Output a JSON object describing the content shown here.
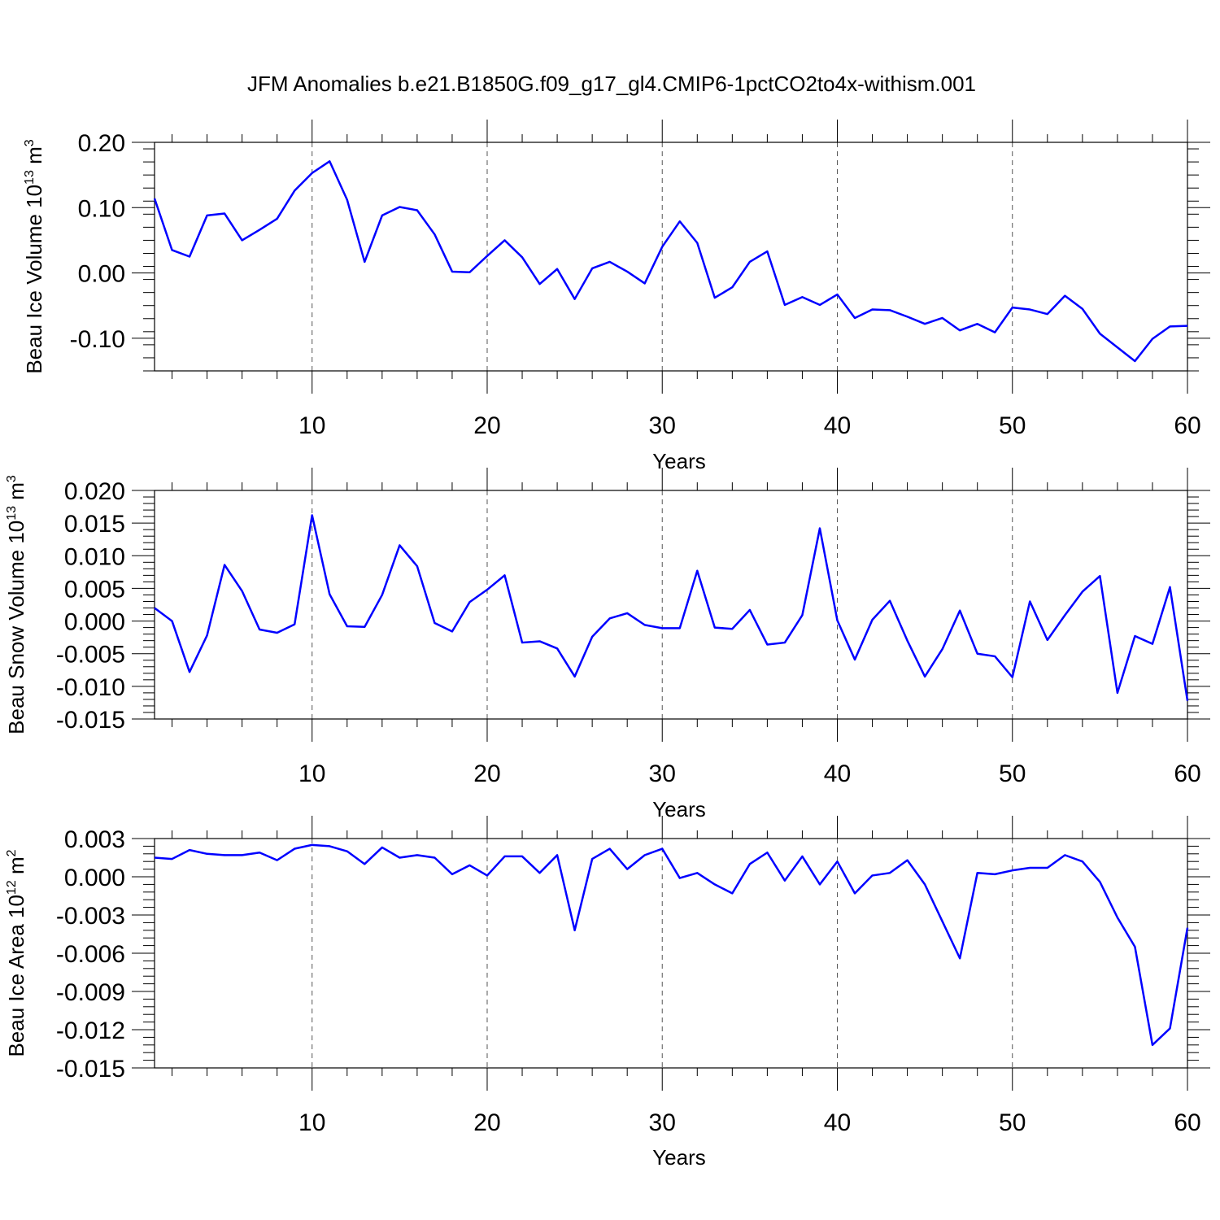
{
  "title": "JFM Anomalies b.e21.B1850G.f09_g17_gl4.CMIP6-1pctCO2to4x-withism.001",
  "line_color": "#0000ff",
  "chart_data": [
    {
      "type": "line",
      "title": "JFM Anomalies b.e21.B1850G.f09_g17_gl4.CMIP6-1pctCO2to4x-withism.001",
      "xlabel": "Years",
      "ylabel": "Beau Ice Volume 10",
      "ylabel_exp": "13",
      "ylabel_unit": " m",
      "ylabel_unit_exp": "3",
      "xlim": [
        1,
        60
      ],
      "ylim": [
        -0.15,
        0.2
      ],
      "xticks": [
        10,
        20,
        30,
        40,
        50,
        60
      ],
      "yticks": [
        -0.1,
        0.0,
        0.1,
        0.2
      ],
      "ytick_labels": [
        "-0.10",
        "0.00",
        "0.10",
        "0.20"
      ],
      "grid": "x-major-dashed",
      "x": [
        1,
        2,
        3,
        4,
        5,
        6,
        7,
        8,
        9,
        10,
        11,
        12,
        13,
        14,
        15,
        16,
        17,
        18,
        19,
        20,
        21,
        22,
        23,
        24,
        25,
        26,
        27,
        28,
        29,
        30,
        31,
        32,
        33,
        34,
        35,
        36,
        37,
        38,
        39,
        40,
        41,
        42,
        43,
        44,
        45,
        46,
        47,
        48,
        49,
        50,
        51,
        52,
        53,
        54,
        55,
        56,
        57,
        58,
        59,
        60
      ],
      "series": [
        {
          "values": [
            0.114,
            0.035,
            0.025,
            0.088,
            0.091,
            0.05,
            0.066,
            0.083,
            0.126,
            0.153,
            0.171,
            0.112,
            0.017,
            0.088,
            0.101,
            0.096,
            0.059,
            0.002,
            0.001,
            0.026,
            0.05,
            0.024,
            -0.017,
            0.006,
            -0.04,
            0.007,
            0.017,
            0.002,
            -0.016,
            0.04,
            0.079,
            0.046,
            -0.038,
            -0.022,
            0.017,
            0.033,
            -0.049,
            -0.037,
            -0.049,
            -0.033,
            -0.069,
            -0.056,
            -0.057,
            -0.067,
            -0.078,
            -0.069,
            -0.088,
            -0.078,
            -0.091,
            -0.053,
            -0.056,
            -0.063,
            -0.035,
            -0.055,
            -0.093,
            -0.114,
            -0.135,
            -0.101,
            -0.082,
            -0.081
          ]
        }
      ]
    },
    {
      "type": "line",
      "xlabel": "Years",
      "ylabel": "Beau Snow Volume 10",
      "ylabel_exp": "13",
      "ylabel_unit": " m",
      "ylabel_unit_exp": "3",
      "xlim": [
        1,
        60
      ],
      "ylim": [
        -0.015,
        0.02
      ],
      "xticks": [
        10,
        20,
        30,
        40,
        50,
        60
      ],
      "yticks": [
        -0.015,
        -0.01,
        -0.005,
        0.0,
        0.005,
        0.01,
        0.015,
        0.02
      ],
      "ytick_labels": [
        "-0.015",
        "-0.010",
        "-0.005",
        "0.000",
        "0.005",
        "0.010",
        "0.015",
        "0.020"
      ],
      "grid": "x-major-dashed",
      "x": [
        1,
        2,
        3,
        4,
        5,
        6,
        7,
        8,
        9,
        10,
        11,
        12,
        13,
        14,
        15,
        16,
        17,
        18,
        19,
        20,
        21,
        22,
        23,
        24,
        25,
        26,
        27,
        28,
        29,
        30,
        31,
        32,
        33,
        34,
        35,
        36,
        37,
        38,
        39,
        40,
        41,
        42,
        43,
        44,
        45,
        46,
        47,
        48,
        49,
        50,
        51,
        52,
        53,
        54,
        55,
        56,
        57,
        58,
        59,
        60
      ],
      "series": [
        {
          "values": [
            0.002,
            0.0,
            -0.0078,
            -0.0022,
            0.0086,
            0.0046,
            -0.0013,
            -0.0018,
            -0.0005,
            0.0162,
            0.0041,
            -0.0008,
            -0.0009,
            0.004,
            0.0116,
            0.0084,
            -0.0003,
            -0.0016,
            0.0029,
            0.0048,
            0.007,
            -0.0033,
            -0.0031,
            -0.0042,
            -0.0085,
            -0.0024,
            0.0004,
            0.0012,
            -0.0006,
            -0.0011,
            -0.0011,
            0.0077,
            -0.001,
            -0.0012,
            0.0017,
            -0.0036,
            -0.0033,
            0.0009,
            0.0142,
            0.0001,
            -0.0059,
            0.0002,
            0.0031,
            -0.003,
            -0.0085,
            -0.0043,
            0.0016,
            -0.005,
            -0.0054,
            -0.0086,
            0.003,
            -0.0029,
            0.0009,
            0.0045,
            0.0069,
            -0.011,
            -0.0023,
            -0.0035,
            0.0052,
            -0.0122
          ]
        }
      ]
    },
    {
      "type": "line",
      "xlabel": "Years",
      "ylabel": "Beau Ice Area 10",
      "ylabel_exp": "12",
      "ylabel_unit": " m",
      "ylabel_unit_exp": "2",
      "xlim": [
        1,
        60
      ],
      "ylim": [
        -0.015,
        0.003
      ],
      "xticks": [
        10,
        20,
        30,
        40,
        50,
        60
      ],
      "yticks": [
        -0.015,
        -0.012,
        -0.009,
        -0.006,
        -0.003,
        0.0,
        0.003
      ],
      "ytick_labels": [
        "-0.015",
        "-0.012",
        "-0.009",
        "-0.006",
        "-0.003",
        "0.000",
        "0.003"
      ],
      "grid": "x-major-dashed",
      "x": [
        1,
        2,
        3,
        4,
        5,
        6,
        7,
        8,
        9,
        10,
        11,
        12,
        13,
        14,
        15,
        16,
        17,
        18,
        19,
        20,
        21,
        22,
        23,
        24,
        25,
        26,
        27,
        28,
        29,
        30,
        31,
        32,
        33,
        34,
        35,
        36,
        37,
        38,
        39,
        40,
        41,
        42,
        43,
        44,
        45,
        46,
        47,
        48,
        49,
        50,
        51,
        52,
        53,
        54,
        55,
        56,
        57,
        58,
        59,
        60
      ],
      "series": [
        {
          "values": [
            0.0015,
            0.0014,
            0.0021,
            0.0018,
            0.0017,
            0.0017,
            0.0019,
            0.0013,
            0.0022,
            0.0025,
            0.0024,
            0.002,
            0.001,
            0.0023,
            0.0015,
            0.0017,
            0.0015,
            0.0002,
            0.0009,
            0.0001,
            0.0016,
            0.0016,
            0.0003,
            0.0017,
            -0.0042,
            0.0014,
            0.0022,
            0.0006,
            0.0017,
            0.0022,
            -0.0001,
            0.0003,
            -0.0006,
            -0.0013,
            0.001,
            0.0019,
            -0.0003,
            0.0016,
            -0.0006,
            0.0012,
            -0.0013,
            0.0001,
            0.0003,
            0.0013,
            -0.0006,
            -0.0035,
            -0.0064,
            0.0003,
            0.0002,
            0.0005,
            0.0007,
            0.0007,
            0.0017,
            0.0012,
            -0.0004,
            -0.0032,
            -0.0055,
            -0.0132,
            -0.0119,
            -0.004
          ]
        }
      ]
    }
  ]
}
